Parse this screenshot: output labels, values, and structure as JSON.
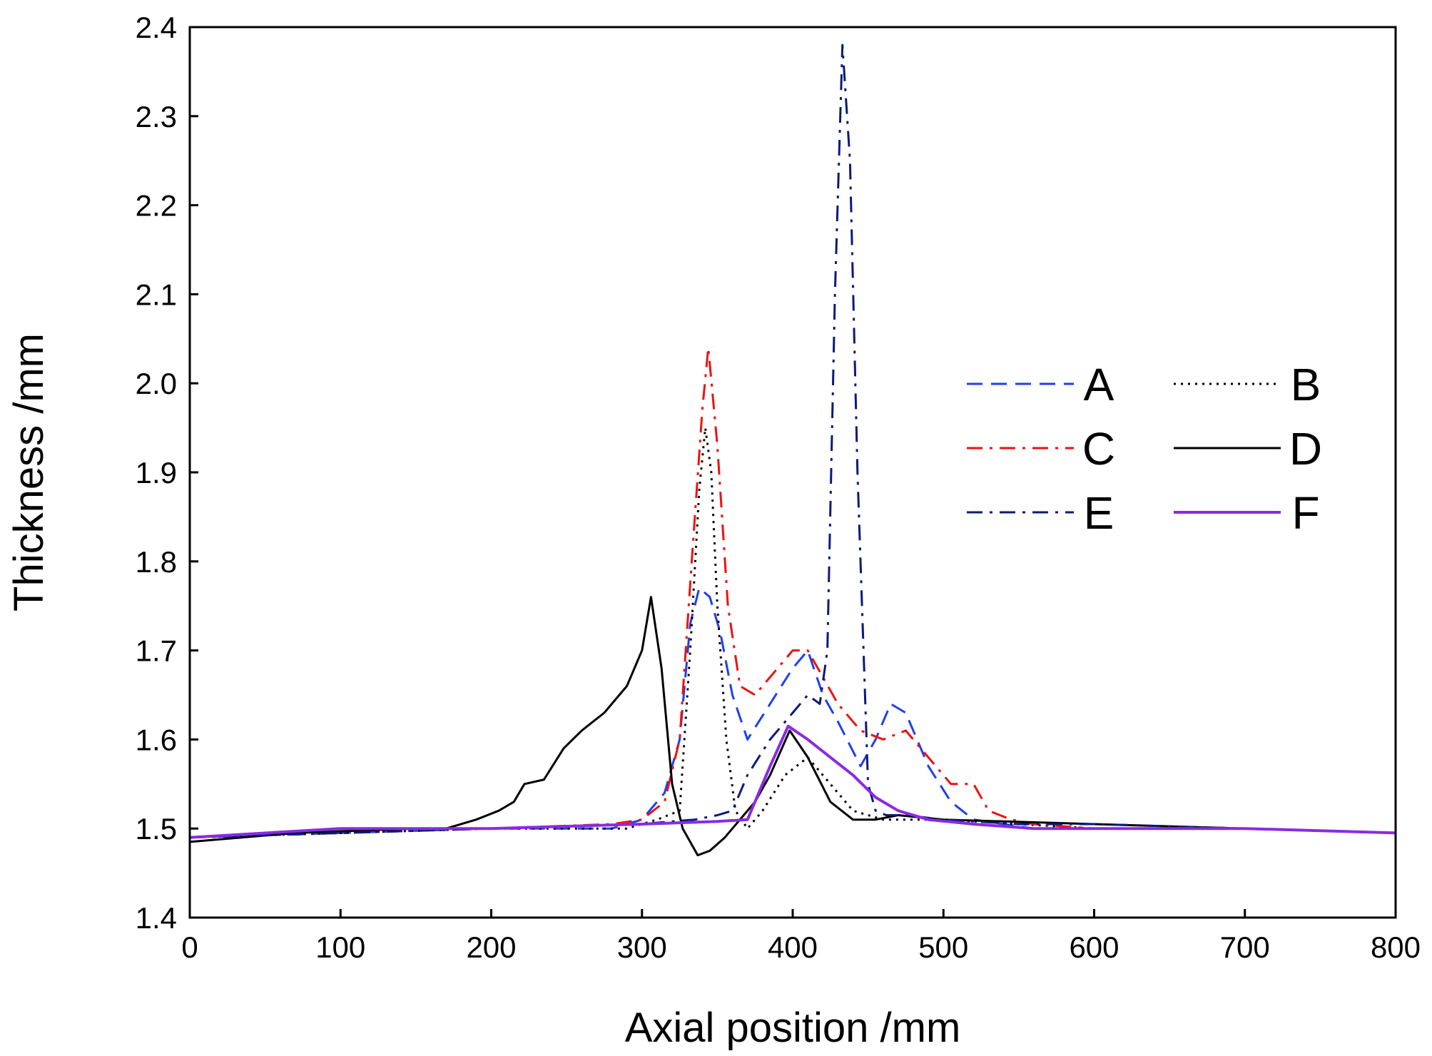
{
  "chart_data": {
    "type": "line",
    "title": "",
    "xlabel": "Axial position /mm",
    "ylabel": "Thickness /mm",
    "xlim": [
      0,
      800
    ],
    "ylim": [
      1.4,
      2.4
    ],
    "xticks": [
      0,
      100,
      200,
      300,
      400,
      500,
      600,
      700,
      800
    ],
    "xtick_labels": [
      "0",
      "100",
      "200",
      "300",
      "400",
      "500",
      "600",
      "700",
      "800"
    ],
    "yticks": [
      1.4,
      1.5,
      1.6,
      1.7,
      1.8,
      1.9,
      2.0,
      2.1,
      2.2,
      2.3,
      2.4
    ],
    "ytick_labels": [
      "1.4",
      "1.5",
      "1.6",
      "1.7",
      "1.8",
      "1.9",
      "2.0",
      "2.1",
      "2.2",
      "2.3",
      "2.4"
    ],
    "grid": false,
    "legend_position": "right",
    "series": [
      {
        "name": "A",
        "color": "#1f3ff0",
        "dash": "dashed",
        "x": [
          0,
          200,
          280,
          300,
          315,
          325,
          332,
          338,
          345,
          352,
          360,
          370,
          385,
          400,
          410,
          420,
          430,
          445,
          455,
          465,
          475,
          490,
          505,
          520,
          540,
          560,
          600,
          700,
          800
        ],
        "y": [
          1.49,
          1.5,
          1.5,
          1.51,
          1.54,
          1.6,
          1.73,
          1.77,
          1.76,
          1.72,
          1.65,
          1.6,
          1.64,
          1.68,
          1.7,
          1.65,
          1.62,
          1.57,
          1.6,
          1.64,
          1.63,
          1.57,
          1.53,
          1.51,
          1.505,
          1.5,
          1.5,
          1.5,
          1.495
        ]
      },
      {
        "name": "B",
        "color": "#000000",
        "dash": "dotted",
        "x": [
          0,
          200,
          290,
          310,
          325,
          332,
          338,
          342,
          346,
          350,
          356,
          362,
          370,
          380,
          395,
          410,
          425,
          440,
          460,
          500,
          600,
          700,
          800
        ],
        "y": [
          1.49,
          1.5,
          1.5,
          1.51,
          1.52,
          1.7,
          1.88,
          1.95,
          1.9,
          1.75,
          1.6,
          1.52,
          1.5,
          1.52,
          1.56,
          1.58,
          1.55,
          1.52,
          1.51,
          1.51,
          1.5,
          1.5,
          1.495
        ]
      },
      {
        "name": "C",
        "color": "#ee1111",
        "dash": "dashdot",
        "x": [
          0,
          200,
          280,
          300,
          315,
          325,
          333,
          340,
          344,
          350,
          357,
          365,
          375,
          385,
          400,
          410,
          420,
          430,
          445,
          460,
          475,
          490,
          505,
          520,
          530,
          545,
          560,
          600,
          700,
          800
        ],
        "y": [
          1.49,
          1.5,
          1.505,
          1.51,
          1.53,
          1.6,
          1.8,
          1.97,
          2.04,
          1.93,
          1.75,
          1.66,
          1.65,
          1.67,
          1.7,
          1.7,
          1.67,
          1.64,
          1.61,
          1.6,
          1.61,
          1.58,
          1.55,
          1.55,
          1.52,
          1.51,
          1.505,
          1.5,
          1.5,
          1.495
        ]
      },
      {
        "name": "D",
        "color": "#000000",
        "dash": "solid",
        "x": [
          0,
          70,
          150,
          170,
          190,
          205,
          215,
          222,
          235,
          248,
          260,
          275,
          290,
          300,
          306,
          313,
          320,
          327,
          337,
          345,
          355,
          365,
          375,
          385,
          398,
          410,
          425,
          440,
          455,
          470,
          500,
          600,
          700,
          800
        ],
        "y": [
          1.485,
          1.495,
          1.5,
          1.5,
          1.51,
          1.52,
          1.53,
          1.55,
          1.555,
          1.59,
          1.61,
          1.63,
          1.66,
          1.7,
          1.76,
          1.68,
          1.55,
          1.5,
          1.47,
          1.475,
          1.49,
          1.51,
          1.53,
          1.56,
          1.61,
          1.58,
          1.53,
          1.51,
          1.51,
          1.515,
          1.51,
          1.505,
          1.5,
          1.495
        ]
      },
      {
        "name": "E",
        "color": "#0a1a7a",
        "dash": "dashdot",
        "x": [
          0,
          200,
          300,
          320,
          335,
          350,
          360,
          370,
          385,
          400,
          410,
          418,
          423,
          428,
          433,
          438,
          443,
          450,
          455,
          462,
          475,
          500,
          550,
          600,
          700,
          800
        ],
        "y": [
          1.49,
          1.5,
          1.505,
          1.508,
          1.51,
          1.515,
          1.52,
          1.56,
          1.6,
          1.63,
          1.65,
          1.64,
          1.7,
          2.1,
          2.38,
          2.25,
          1.9,
          1.55,
          1.52,
          1.515,
          1.515,
          1.51,
          1.505,
          1.505,
          1.5,
          1.495
        ]
      },
      {
        "name": "F",
        "color": "#8a2be2",
        "dash": "solid",
        "x": [
          0,
          100,
          200,
          300,
          350,
          370,
          385,
          397,
          410,
          425,
          440,
          455,
          470,
          490,
          520,
          560,
          600,
          700,
          800
        ],
        "y": [
          1.49,
          1.5,
          1.5,
          1.505,
          1.508,
          1.51,
          1.57,
          1.615,
          1.6,
          1.58,
          1.56,
          1.535,
          1.52,
          1.51,
          1.505,
          1.5,
          1.5,
          1.5,
          1.495
        ]
      }
    ],
    "legend": [
      {
        "label": "A",
        "series": 0
      },
      {
        "label": "B",
        "series": 1
      },
      {
        "label": "C",
        "series": 2
      },
      {
        "label": "D",
        "series": 3
      },
      {
        "label": "E",
        "series": 4
      },
      {
        "label": "F",
        "series": 5
      }
    ]
  }
}
